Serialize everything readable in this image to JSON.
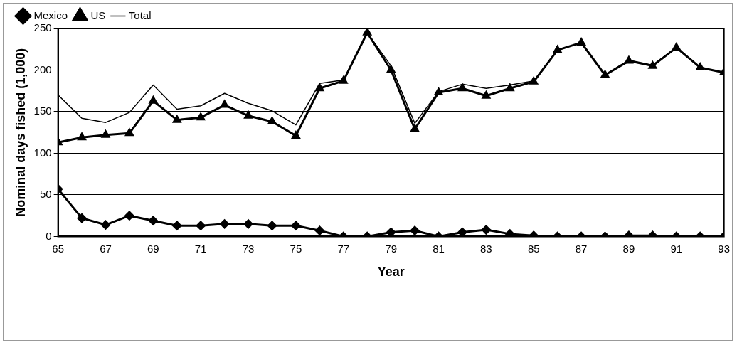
{
  "chart_data": {
    "type": "line",
    "xlabel": "Year",
    "ylabel": "Nominal days fished (1,000)",
    "x": [
      65,
      66,
      67,
      68,
      69,
      70,
      71,
      72,
      73,
      74,
      75,
      76,
      77,
      78,
      79,
      80,
      81,
      82,
      83,
      84,
      85,
      86,
      87,
      88,
      89,
      90,
      91,
      92,
      93
    ],
    "xlim": [
      65,
      93
    ],
    "xticks": [
      65,
      67,
      69,
      71,
      73,
      75,
      77,
      79,
      81,
      83,
      85,
      87,
      89,
      91,
      93
    ],
    "ylim": [
      0,
      250
    ],
    "yticks": [
      0,
      50,
      100,
      150,
      200,
      250
    ],
    "grid": "y",
    "legend": "top",
    "series": [
      {
        "name": "Mexico",
        "color": "#000000",
        "marker": "diamond",
        "values": [
          57,
          22,
          14,
          25,
          19,
          13,
          13,
          15,
          15,
          13,
          13,
          7,
          0,
          0,
          5,
          7,
          0,
          5,
          8,
          3,
          1,
          0,
          0,
          0,
          1,
          1,
          0,
          0,
          0
        ]
      },
      {
        "name": "US",
        "color": "#000000",
        "marker": "triangle",
        "values": [
          113,
          119,
          122,
          124,
          163,
          140,
          143,
          158,
          145,
          138,
          121,
          178,
          187,
          245,
          200,
          129,
          173,
          178,
          169,
          178,
          186,
          224,
          233,
          194,
          211,
          205,
          227,
          203,
          197
        ]
      },
      {
        "name": "Total",
        "color": "#000000",
        "marker": "none",
        "values": [
          170,
          142,
          137,
          149,
          182,
          153,
          157,
          172,
          160,
          151,
          134,
          184,
          188,
          245,
          205,
          136,
          174,
          183,
          178,
          182,
          187,
          224,
          233,
          194,
          212,
          206,
          227,
          203,
          197
        ]
      }
    ]
  }
}
